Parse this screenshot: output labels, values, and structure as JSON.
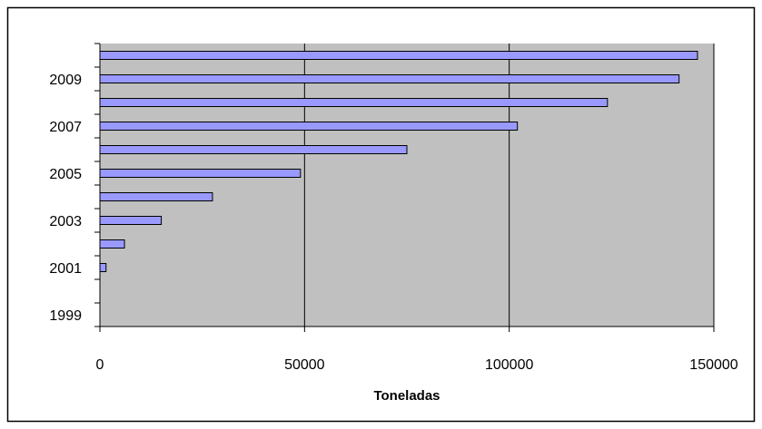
{
  "chart_data": {
    "type": "barh",
    "x_label": "Toneladas",
    "categories": [
      "1999",
      null,
      "2001",
      null,
      "2003",
      null,
      "2005",
      null,
      "2007",
      null,
      "2009",
      null
    ],
    "values": [
      0,
      0,
      1500,
      6000,
      15000,
      27500,
      49000,
      75000,
      102000,
      124000,
      141500,
      146000
    ],
    "color": "#9999ff",
    "plot_background": "#c0c0c0",
    "xlim": [
      0,
      150000
    ],
    "xticks": [
      0,
      50000,
      100000,
      150000
    ],
    "grid": true
  }
}
